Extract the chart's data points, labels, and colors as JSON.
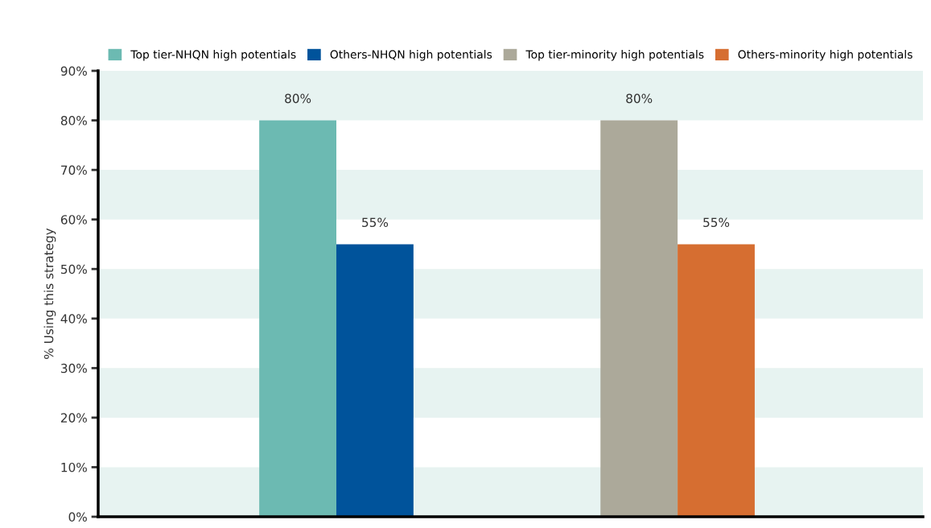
{
  "chart_data": {
    "type": "bar",
    "ylabel": "% Using this strategy",
    "categories": [
      null,
      null
    ],
    "series": [
      {
        "name": "Top tier-NHQN high potentials",
        "color": "#6cbab2",
        "values": [
          80,
          null
        ],
        "value_labels": [
          "80%",
          null
        ]
      },
      {
        "name": "Others-NHQN high potentials",
        "color": "#00539b",
        "values": [
          55,
          null
        ],
        "value_labels": [
          "55%",
          null
        ]
      },
      {
        "name": "Top tier-minority high potentials",
        "color": "#aca99a",
        "values": [
          null,
          80
        ],
        "value_labels": [
          null,
          "80%"
        ]
      },
      {
        "name": "Others-minority high potentials",
        "color": "#d66e31",
        "values": [
          null,
          55
        ],
        "value_labels": [
          null,
          "55%"
        ]
      }
    ],
    "ylim": [
      0,
      90
    ],
    "yticks": [
      {
        "value": 0,
        "label": "0%"
      },
      {
        "value": 10,
        "label": "10%"
      },
      {
        "value": 20,
        "label": "20%"
      },
      {
        "value": 30,
        "label": "30%"
      },
      {
        "value": 40,
        "label": "40%"
      },
      {
        "value": 50,
        "label": "50%"
      },
      {
        "value": 60,
        "label": "60%"
      },
      {
        "value": 70,
        "label": "70%"
      },
      {
        "value": 80,
        "label": "80%"
      },
      {
        "value": 90,
        "label": "90%"
      }
    ],
    "bands": [
      {
        "axis": "y",
        "from": 0,
        "to": 10,
        "color": "#e7f3f1"
      },
      {
        "axis": "y",
        "from": 20,
        "to": 30,
        "color": "#e7f3f1"
      },
      {
        "axis": "y",
        "from": 40,
        "to": 50,
        "color": "#e7f3f1"
      },
      {
        "axis": "y",
        "from": 60,
        "to": 70,
        "color": "#e7f3f1"
      },
      {
        "axis": "y",
        "from": 80,
        "to": 90,
        "color": "#e7f3f1"
      }
    ],
    "legend": "top"
  }
}
